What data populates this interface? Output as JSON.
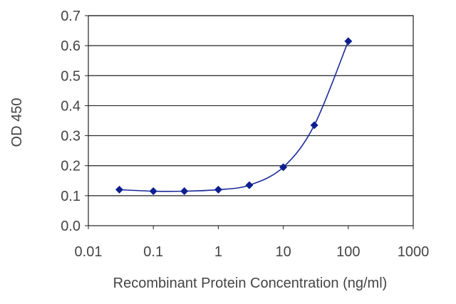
{
  "chart_data": {
    "type": "line",
    "title": "",
    "xlabel": "Recombinant Protein Concentration (ng/ml)",
    "ylabel": "OD 450",
    "x_scale": "log",
    "xlim": [
      0.01,
      1000
    ],
    "ylim": [
      0,
      0.7
    ],
    "x_ticks": [
      0.01,
      0.1,
      1,
      10,
      100,
      1000
    ],
    "x_tick_labels": [
      "0.01",
      "0.1",
      "1",
      "10",
      "100",
      "1000"
    ],
    "y_ticks": [
      0.0,
      0.1,
      0.2,
      0.3,
      0.4,
      0.5,
      0.6,
      0.7
    ],
    "y_tick_labels": [
      "0.0",
      "0.1",
      "0.2",
      "0.3",
      "0.4",
      "0.5",
      "0.6",
      "0.7"
    ],
    "grid": "horizontal",
    "legend": "none",
    "line_color": "#1a2a9a",
    "marker_color": "#0c1f8f",
    "grid_color": "#222222",
    "series": [
      {
        "x": [
          0.03,
          0.1,
          0.3,
          1,
          3,
          10,
          30,
          100
        ],
        "y": [
          0.12,
          0.115,
          0.115,
          0.12,
          0.135,
          0.195,
          0.335,
          0.615
        ]
      }
    ]
  }
}
